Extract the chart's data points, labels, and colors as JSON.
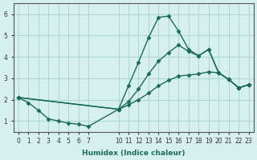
{
  "bg_color": "#d6f0ee",
  "grid_color": "#b0d8d4",
  "line_color": "#1a6b5a",
  "xlabel": "Humidex (Indice chaleur)",
  "xlim": [
    -0.5,
    23.5
  ],
  "ylim": [
    0.5,
    6.5
  ],
  "xticks": [
    0,
    1,
    2,
    3,
    4,
    5,
    6,
    7,
    10,
    11,
    12,
    13,
    14,
    15,
    16,
    17,
    18,
    19,
    20,
    21,
    22,
    23
  ],
  "yticks": [
    1,
    2,
    3,
    4,
    5,
    6
  ],
  "series": [
    {
      "x": [
        0,
        1,
        2,
        3,
        4,
        5,
        6,
        7,
        10,
        11,
        12,
        13,
        14,
        15,
        16,
        17,
        18,
        19,
        20,
        21,
        22,
        23
      ],
      "y": [
        2.1,
        1.85,
        1.5,
        1.1,
        1.0,
        0.9,
        0.85,
        0.75,
        1.55,
        2.65,
        3.75,
        4.9,
        5.85,
        5.9,
        5.2,
        4.35,
        4.05,
        4.35,
        3.25,
        2.95,
        2.55,
        2.7
      ]
    },
    {
      "x": [
        0,
        10,
        11,
        12,
        13,
        14,
        15,
        16,
        17,
        18,
        19,
        20,
        21,
        22,
        23
      ],
      "y": [
        2.1,
        1.55,
        1.9,
        2.5,
        3.2,
        3.8,
        4.2,
        4.55,
        4.25,
        4.05,
        4.35,
        3.25,
        2.95,
        2.55,
        2.7
      ]
    },
    {
      "x": [
        0,
        10,
        11,
        12,
        13,
        14,
        15,
        16,
        17,
        18,
        19,
        20,
        21,
        22,
        23
      ],
      "y": [
        2.1,
        1.55,
        1.75,
        2.0,
        2.3,
        2.65,
        2.9,
        3.1,
        3.15,
        3.2,
        3.3,
        3.25,
        2.95,
        2.55,
        2.7
      ]
    }
  ]
}
